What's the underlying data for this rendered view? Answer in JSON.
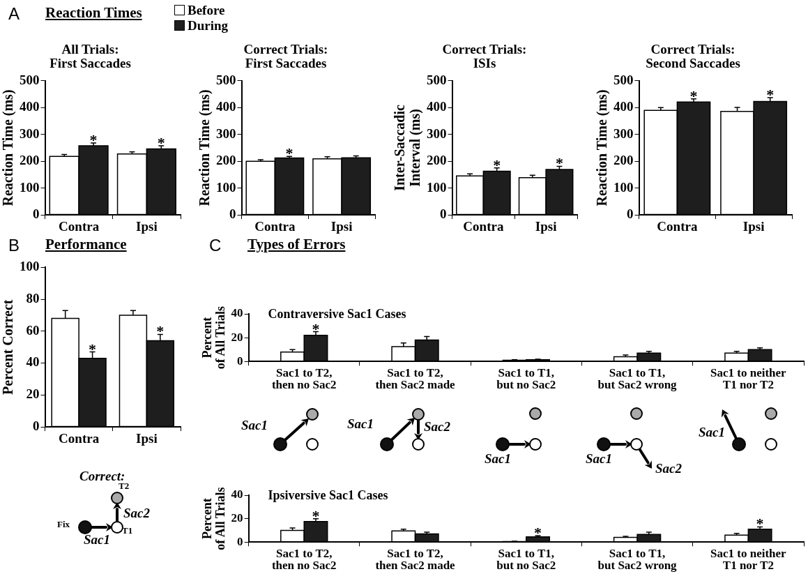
{
  "chart_data": [
    {
      "type": "bar",
      "title": "All Trials:\nFirst Saccades",
      "ylabel": "Reaction Time (ms)",
      "categories": [
        "Contra",
        "Ipsi"
      ],
      "legend": "top",
      "series": [
        {
          "name": "Before",
          "color": "#ffffff",
          "values": [
            218,
            227
          ],
          "errors": [
            7,
            8
          ]
        },
        {
          "name": "During",
          "color": "#1e1e1e",
          "values": [
            258,
            246
          ],
          "errors": [
            10,
            12
          ]
        }
      ],
      "ylim": [
        0,
        500
      ],
      "yticks": [
        0,
        100,
        200,
        300,
        400,
        500
      ],
      "annotations": [
        "A",
        "Reaction Times",
        {
          "text": "*",
          "x": "Contra",
          "y": 258
        },
        {
          "text": "*",
          "x": "Ipsi",
          "y": 246
        }
      ]
    },
    {
      "type": "bar",
      "title": "Correct Trials:\nFirst Saccades",
      "ylabel": "Reaction Time (ms)",
      "categories": [
        "Contra",
        "Ipsi"
      ],
      "series": [
        {
          "color": "#ffffff",
          "values": [
            200,
            209
          ],
          "errors": [
            6,
            8
          ]
        },
        {
          "color": "#1e1e1e",
          "values": [
            212,
            213
          ],
          "errors": [
            6,
            7
          ]
        }
      ],
      "ylim": [
        0,
        500
      ],
      "yticks": [
        0,
        100,
        200,
        300,
        400,
        500
      ],
      "annotations": [
        {
          "text": "*",
          "x": "Contra",
          "y": 212
        }
      ]
    },
    {
      "type": "bar",
      "title": "Correct Trials:\nISIs",
      "ylabel": "Inter-Saccadic\nInterval (ms)",
      "categories": [
        "Contra",
        "Ipsi"
      ],
      "series": [
        {
          "color": "#ffffff",
          "values": [
            145,
            139
          ],
          "errors": [
            8,
            9
          ]
        },
        {
          "color": "#1e1e1e",
          "values": [
            163,
            169
          ],
          "errors": [
            12,
            12
          ]
        }
      ],
      "ylim": [
        0,
        500
      ],
      "yticks": [
        0,
        100,
        200,
        300,
        400,
        500
      ],
      "annotations": [
        {
          "text": "*",
          "x": "Contra",
          "y": 163
        },
        {
          "text": "*",
          "x": "Ipsi",
          "y": 169
        }
      ]
    },
    {
      "type": "bar",
      "title": "Correct Trials:\nSecond Saccades",
      "ylabel": "Reaction Time (ms)",
      "categories": [
        "Contra",
        "Ipsi"
      ],
      "series": [
        {
          "color": "#ffffff",
          "values": [
            390,
            386
          ],
          "errors": [
            10,
            15
          ]
        },
        {
          "color": "#1e1e1e",
          "values": [
            421,
            423
          ],
          "errors": [
            12,
            14
          ]
        }
      ],
      "ylim": [
        0,
        500
      ],
      "yticks": [
        0,
        100,
        200,
        300,
        400,
        500
      ],
      "annotations": [
        {
          "text": "*",
          "x": "Contra",
          "y": 421
        },
        {
          "text": "*",
          "x": "Ipsi",
          "y": 423
        }
      ]
    },
    {
      "type": "bar",
      "ylabel": "Percent Correct",
      "categories": [
        "Contra",
        "Ipsi"
      ],
      "series": [
        {
          "color": "#ffffff",
          "values": [
            68,
            70
          ],
          "errors": [
            5,
            3
          ]
        },
        {
          "color": "#1e1e1e",
          "values": [
            43,
            54
          ],
          "errors": [
            4,
            4
          ]
        }
      ],
      "ylim": [
        0,
        100
      ],
      "yticks": [
        0,
        20,
        40,
        60,
        80,
        100
      ],
      "annotations": [
        "B",
        "Performance",
        "Correct:",
        "Fix",
        "T1",
        "T2",
        "Sac1",
        "Sac2",
        {
          "text": "*",
          "x": "Contra",
          "y": 43
        },
        {
          "text": "*",
          "x": "Ipsi",
          "y": 54
        }
      ]
    },
    {
      "type": "bar",
      "title": "Contraversive Sac1 Cases",
      "ylabel": "Percent\nof All Trials",
      "categories": [
        "Sac1 to T2,\nthen no Sac2",
        "Sac1 to T2,\nthen Sac2 made",
        "Sac1 to T1,\nbut no Sac2",
        "Sac1 to T1,\nbut Sac2 wrong",
        "Sac1 to neither\nT1 nor T2"
      ],
      "series": [
        {
          "color": "#ffffff",
          "values": [
            8,
            12.5,
            1,
            4,
            7
          ],
          "errors": [
            2,
            3,
            0.5,
            1.5,
            1.5
          ]
        },
        {
          "color": "#1e1e1e",
          "values": [
            22,
            18,
            1.5,
            7,
            10
          ],
          "errors": [
            3,
            3,
            0.5,
            1.5,
            1.5
          ]
        }
      ],
      "ylim": [
        0,
        40
      ],
      "yticks": [
        0,
        20,
        40
      ],
      "annotations": [
        "C",
        "Types of Errors",
        "Sac1",
        "Sac1",
        "Sac2",
        "Sac1",
        "Sac1",
        "Sac2",
        "Sac1",
        {
          "text": "*",
          "x": "Sac1 to T2,\nthen no Sac2",
          "y": 22
        }
      ]
    },
    {
      "type": "bar",
      "title": "Ipsiversive Sac1 Cases",
      "ylabel": "Percent\nof All Trials",
      "categories": [
        "Sac1 to T2,\nthen no Sac2",
        "Sac1 to T2,\nthen Sac2 made",
        "Sac1 to T1,\nbut no Sac2",
        "Sac1 to T1,\nbut Sac2 wrong",
        "Sac1 to neither\nT1 nor T2"
      ],
      "series": [
        {
          "color": "#ffffff",
          "values": [
            10,
            9.5,
            0.5,
            4,
            6
          ],
          "errors": [
            2,
            1.5,
            0.3,
            1,
            1.5
          ]
        },
        {
          "color": "#1e1e1e",
          "values": [
            17.5,
            7,
            4.5,
            6.5,
            11
          ],
          "errors": [
            2.5,
            1.5,
            1,
            2,
            2
          ]
        }
      ],
      "ylim": [
        0,
        40
      ],
      "yticks": [
        0,
        20,
        40
      ],
      "annotations": [
        {
          "text": "*",
          "x": "Sac1 to T2,\nthen no Sac2",
          "y": 17.5
        },
        {
          "text": "*",
          "x": "Sac1 to T1,\nbut no Sac2",
          "y": 4.5
        },
        {
          "text": "*",
          "x": "Sac1 to neither\nT1 nor T2",
          "y": 11
        }
      ]
    }
  ]
}
